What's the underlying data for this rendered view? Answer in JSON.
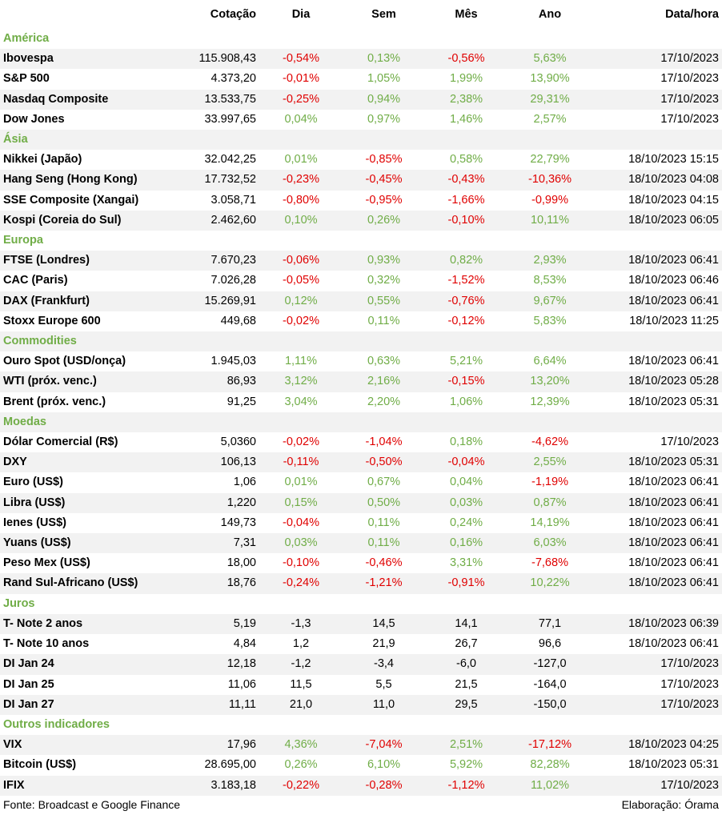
{
  "colors": {
    "positive": "#70ad47",
    "negative": "#e00000",
    "section": "#70ad47",
    "stripe": "#f2f2f2"
  },
  "headers": [
    "",
    "Cotação",
    "Dia",
    "Sem",
    "Mês",
    "Ano",
    "Data/hora"
  ],
  "sections": [
    {
      "title": "América",
      "rows": [
        [
          "Ibovespa",
          "115.908,43",
          "-0,54%",
          "0,13%",
          "-0,56%",
          "5,63%",
          "17/10/2023"
        ],
        [
          "S&P 500",
          "4.373,20",
          "-0,01%",
          "1,05%",
          "1,99%",
          "13,90%",
          "17/10/2023"
        ],
        [
          "Nasdaq Composite",
          "13.533,75",
          "-0,25%",
          "0,94%",
          "2,38%",
          "29,31%",
          "17/10/2023"
        ],
        [
          "Dow Jones",
          "33.997,65",
          "0,04%",
          "0,97%",
          "1,46%",
          "2,57%",
          "17/10/2023"
        ]
      ]
    },
    {
      "title": "Ásia",
      "rows": [
        [
          "Nikkei (Japão)",
          "32.042,25",
          "0,01%",
          "-0,85%",
          "0,58%",
          "22,79%",
          "18/10/2023 15:15"
        ],
        [
          "Hang Seng (Hong Kong)",
          "17.732,52",
          "-0,23%",
          "-0,45%",
          "-0,43%",
          "-10,36%",
          "18/10/2023 04:08"
        ],
        [
          "SSE Composite (Xangai)",
          "3.058,71",
          "-0,80%",
          "-0,95%",
          "-1,66%",
          "-0,99%",
          "18/10/2023 04:15"
        ],
        [
          "Kospi (Coreia do Sul)",
          "2.462,60",
          "0,10%",
          "0,26%",
          "-0,10%",
          "10,11%",
          "18/10/2023 06:05"
        ]
      ]
    },
    {
      "title": "Europa",
      "rows": [
        [
          "FTSE (Londres)",
          "7.670,23",
          "-0,06%",
          "0,93%",
          "0,82%",
          "2,93%",
          "18/10/2023 06:41"
        ],
        [
          "CAC (Paris)",
          "7.026,28",
          "-0,05%",
          "0,32%",
          "-1,52%",
          "8,53%",
          "18/10/2023 06:46"
        ],
        [
          "DAX (Frankfurt)",
          "15.269,91",
          "0,12%",
          "0,55%",
          "-0,76%",
          "9,67%",
          "18/10/2023 06:41"
        ],
        [
          "Stoxx Europe 600",
          "449,68",
          "-0,02%",
          "0,11%",
          "-0,12%",
          "5,83%",
          "18/10/2023 11:25"
        ]
      ]
    },
    {
      "title": "Commodities",
      "rows": [
        [
          "Ouro Spot (USD/onça)",
          "1.945,03",
          "1,11%",
          "0,63%",
          "5,21%",
          "6,64%",
          "18/10/2023 06:41"
        ],
        [
          "WTI (próx. venc.)",
          "86,93",
          "3,12%",
          "2,16%",
          "-0,15%",
          "13,20%",
          "18/10/2023 05:28"
        ],
        [
          "Brent (próx. venc.)",
          "91,25",
          "3,04%",
          "2,20%",
          "1,06%",
          "12,39%",
          "18/10/2023 05:31"
        ]
      ]
    },
    {
      "title": "Moedas",
      "rows": [
        [
          "Dólar Comercial (R$)",
          "5,0360",
          "-0,02%",
          "-1,04%",
          "0,18%",
          "-4,62%",
          "17/10/2023"
        ],
        [
          "DXY",
          "106,13",
          "-0,11%",
          "-0,50%",
          "-0,04%",
          "2,55%",
          "18/10/2023 05:31"
        ],
        [
          "Euro (US$)",
          "1,06",
          "0,01%",
          "0,67%",
          "0,04%",
          "-1,19%",
          "18/10/2023 06:41"
        ],
        [
          "Libra (US$)",
          "1,220",
          "0,15%",
          "0,50%",
          "0,03%",
          "0,87%",
          "18/10/2023 06:41"
        ],
        [
          "Ienes (US$)",
          "149,73",
          "-0,04%",
          "0,11%",
          "0,24%",
          "14,19%",
          "18/10/2023 06:41"
        ],
        [
          "Yuans (US$)",
          "7,31",
          "0,03%",
          "0,11%",
          "0,16%",
          "6,03%",
          "18/10/2023 06:41"
        ],
        [
          "Peso Mex (US$)",
          "18,00",
          "-0,10%",
          "-0,46%",
          "3,31%",
          "-7,68%",
          "18/10/2023 06:41"
        ],
        [
          "Rand Sul-Africano (US$)",
          "18,76",
          "-0,24%",
          "-1,21%",
          "-0,91%",
          "10,22%",
          "18/10/2023 06:41"
        ]
      ]
    },
    {
      "title": "Juros",
      "rows": [
        [
          "T- Note 2 anos",
          "5,19",
          "-1,3",
          "14,5",
          "14,1",
          "77,1",
          "18/10/2023 06:39"
        ],
        [
          "T- Note 10 anos",
          "4,84",
          "1,2",
          "21,9",
          "26,7",
          "96,6",
          "18/10/2023 06:41"
        ],
        [
          "DI Jan 24",
          "12,18",
          "-1,2",
          "-3,4",
          "-6,0",
          "-127,0",
          "17/10/2023"
        ],
        [
          "DI Jan 25",
          "11,06",
          "11,5",
          "5,5",
          "21,5",
          "-164,0",
          "17/10/2023"
        ],
        [
          "DI Jan 27",
          "11,11",
          "21,0",
          "11,0",
          "29,5",
          "-150,0",
          "17/10/2023"
        ]
      ]
    },
    {
      "title": "Outros indicadores",
      "rows": [
        [
          "VIX",
          "17,96",
          "4,36%",
          "-7,04%",
          "2,51%",
          "-17,12%",
          "18/10/2023 04:25"
        ],
        [
          "Bitcoin (US$)",
          "28.695,00",
          "0,26%",
          "6,10%",
          "5,92%",
          "82,28%",
          "18/10/2023 05:31"
        ],
        [
          "IFIX",
          "3.183,18",
          "-0,22%",
          "-0,28%",
          "-1,12%",
          "11,02%",
          "17/10/2023"
        ]
      ]
    }
  ],
  "footer": {
    "source": "Fonte: Broadcast e Google Finance",
    "credit": "Elaboração: Órama"
  }
}
